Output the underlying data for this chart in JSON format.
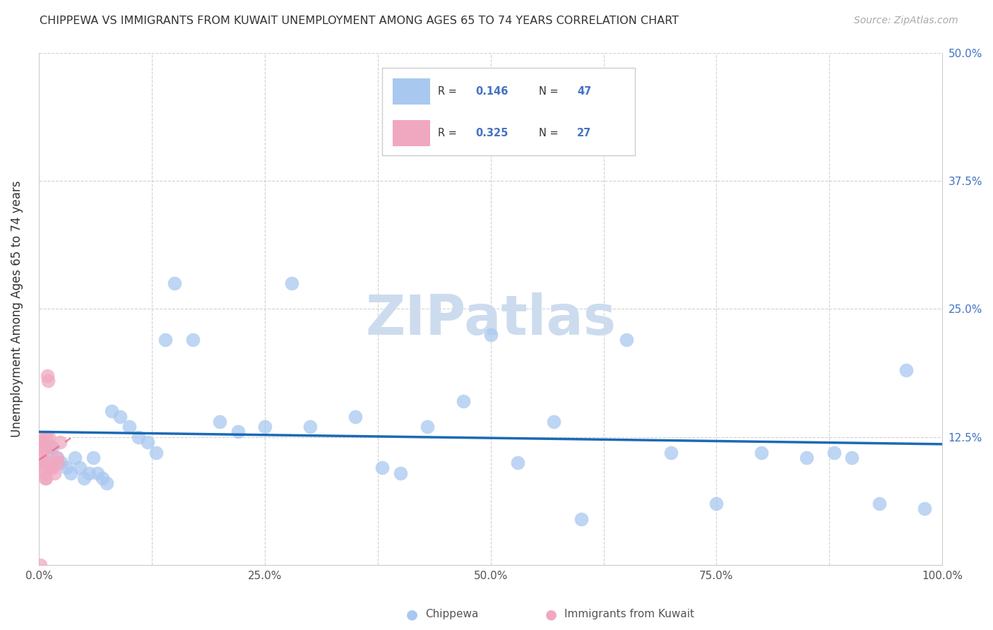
{
  "title": "CHIPPEWA VS IMMIGRANTS FROM KUWAIT UNEMPLOYMENT AMONG AGES 65 TO 74 YEARS CORRELATION CHART",
  "source": "Source: ZipAtlas.com",
  "ylabel": "Unemployment Among Ages 65 to 74 years",
  "xlim": [
    0,
    100
  ],
  "ylim": [
    0,
    50
  ],
  "chippewa_R": 0.146,
  "chippewa_N": 47,
  "kuwait_R": 0.325,
  "kuwait_N": 27,
  "chippewa_color": "#a8c8f0",
  "chippewa_edge": "#7aaad0",
  "kuwait_color": "#f0a8c0",
  "kuwait_edge": "#d07898",
  "trend_blue": "#1a6ab5",
  "trend_pink": "#e87090",
  "watermark": "ZIPatlas",
  "watermark_color": "#ccdcee",
  "chippewa_x": [
    1.0,
    1.5,
    2.0,
    2.5,
    3.0,
    3.5,
    4.0,
    4.5,
    5.0,
    5.5,
    6.0,
    6.5,
    7.0,
    7.5,
    8.0,
    9.0,
    10.0,
    11.0,
    12.0,
    13.0,
    14.0,
    15.0,
    17.0,
    20.0,
    22.0,
    25.0,
    28.0,
    30.0,
    35.0,
    38.0,
    40.0,
    43.0,
    47.0,
    50.0,
    53.0,
    57.0,
    60.0,
    65.0,
    70.0,
    75.0,
    80.0,
    85.0,
    88.0,
    90.0,
    93.0,
    96.0,
    98.0
  ],
  "chippewa_y": [
    11.0,
    11.5,
    10.5,
    10.0,
    9.5,
    9.0,
    10.5,
    9.5,
    8.5,
    9.0,
    10.5,
    9.0,
    8.5,
    8.0,
    15.0,
    14.5,
    13.5,
    12.5,
    12.0,
    11.0,
    22.0,
    27.5,
    22.0,
    14.0,
    13.0,
    13.5,
    27.5,
    13.5,
    14.5,
    9.5,
    9.0,
    13.5,
    16.0,
    22.5,
    10.0,
    14.0,
    4.5,
    22.0,
    11.0,
    6.0,
    11.0,
    10.5,
    11.0,
    10.5,
    6.0,
    19.0,
    5.5
  ],
  "kuwait_x": [
    0.1,
    0.15,
    0.2,
    0.25,
    0.3,
    0.35,
    0.4,
    0.45,
    0.5,
    0.55,
    0.6,
    0.65,
    0.7,
    0.75,
    0.8,
    0.85,
    0.9,
    1.0,
    1.1,
    1.2,
    1.3,
    1.4,
    1.5,
    1.7,
    1.9,
    2.1,
    2.3
  ],
  "kuwait_y": [
    0.0,
    12.5,
    11.5,
    12.0,
    10.5,
    11.0,
    12.0,
    10.0,
    11.5,
    10.0,
    9.5,
    8.5,
    9.0,
    8.5,
    12.5,
    11.5,
    18.5,
    18.0,
    12.5,
    11.5,
    10.0,
    9.5,
    9.5,
    9.0,
    10.5,
    10.0,
    12.0
  ]
}
